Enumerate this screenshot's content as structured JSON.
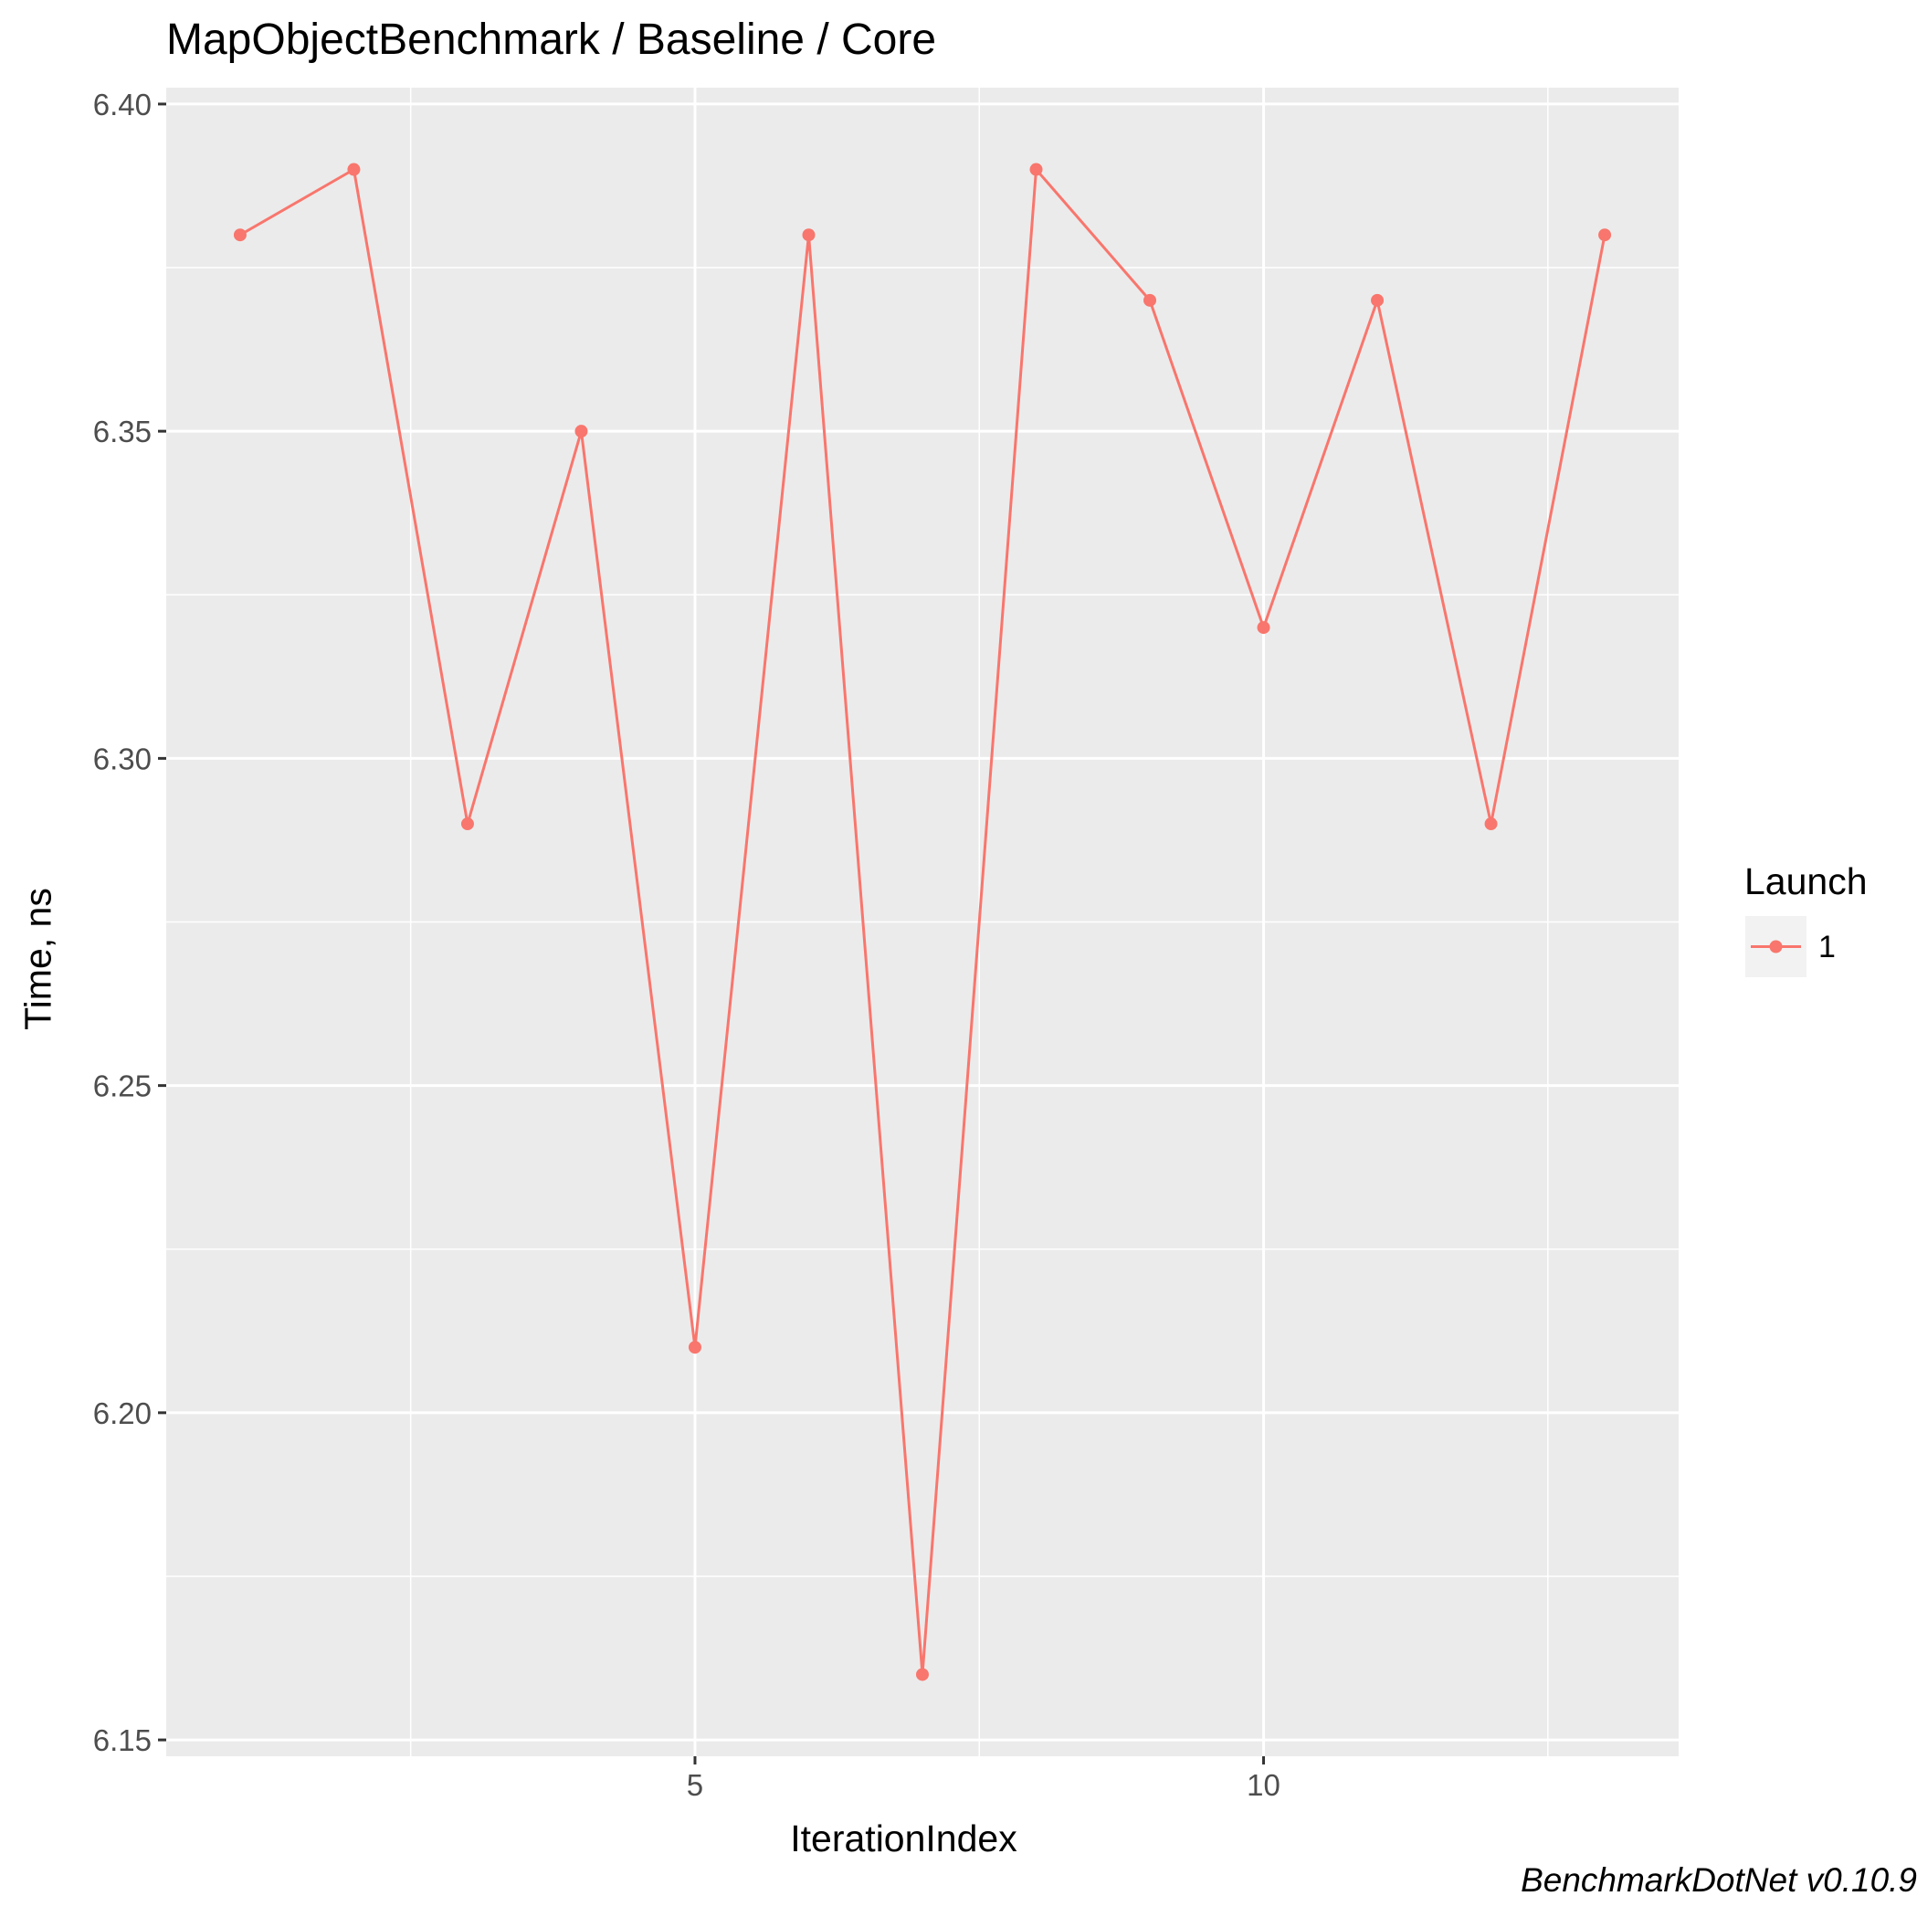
{
  "title": "MapObjectBenchmark / Baseline / Core",
  "caption": "BenchmarkDotNet v0.10.9",
  "legend": {
    "title": "Launch",
    "entries": [
      "1"
    ]
  },
  "colors": {
    "series": "#f8766d",
    "panel": "#ebebeb",
    "grid": "#ffffff"
  },
  "chart_data": {
    "type": "line",
    "title": "MapObjectBenchmark / Baseline / Core",
    "xlabel": "IterationIndex",
    "ylabel": "Time, ns",
    "xlim": [
      0.35,
      13.65
    ],
    "ylim": [
      6.1475,
      6.4025
    ],
    "x_ticks": [
      5,
      10
    ],
    "x_tick_labels": [
      "5",
      "10"
    ],
    "y_ticks": [
      6.15,
      6.2,
      6.25,
      6.3,
      6.35,
      6.4
    ],
    "y_tick_labels": [
      "6.15",
      "6.20",
      "6.25",
      "6.30",
      "6.35",
      "6.40"
    ],
    "grid": true,
    "legend_position": "right",
    "series": [
      {
        "name": "1",
        "x": [
          1,
          2,
          3,
          4,
          5,
          6,
          7,
          8,
          9,
          10,
          11,
          12,
          13
        ],
        "y": [
          6.38,
          6.39,
          6.29,
          6.35,
          6.21,
          6.38,
          6.16,
          6.39,
          6.37,
          6.32,
          6.37,
          6.29,
          6.38
        ]
      }
    ]
  }
}
